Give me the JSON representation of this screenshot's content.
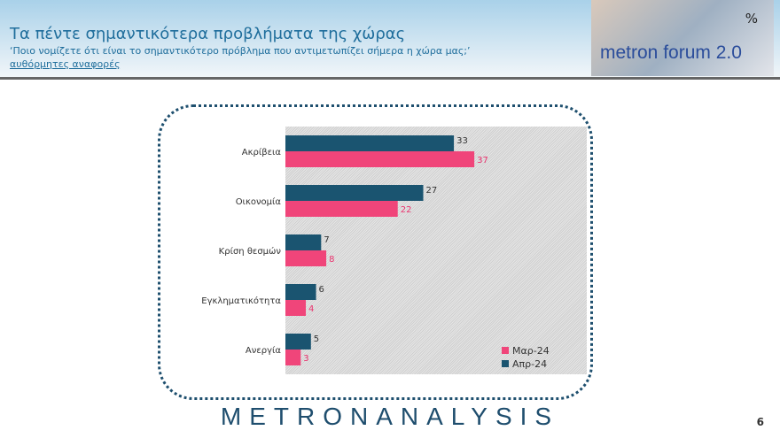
{
  "header": {
    "title": "Τα πέντε σημαντικότερα προβλήματα της χώρας",
    "subtitle": "‘Ποιο νομίζετε ότι είναι το σημαντικότερο πρόβλημα που αντιμετωπίζει σήμερα η χώρα μας;’",
    "note": "αυθόρμητες αναφορές",
    "logo_text": "metron forum 2.0",
    "logo_symbol": "%"
  },
  "footer": {
    "brand": "METRONANALYSIS",
    "page": "6"
  },
  "chart_data": {
    "type": "bar",
    "orientation": "horizontal",
    "categories": [
      "Ακρίβεια",
      "Οικονομία",
      "Κρίση θεσμών",
      "Εγκληματικότητα",
      "Ανεργία"
    ],
    "series": [
      {
        "name": "Απρ-24",
        "color": "#1a5470",
        "values": [
          33,
          27,
          7,
          6,
          5
        ]
      },
      {
        "name": "Μαρ-24",
        "color": "#f0457a",
        "values": [
          37,
          22,
          8,
          4,
          3
        ]
      }
    ],
    "legend": [
      "Μαρ-24",
      "Απρ-24"
    ],
    "legend_position": "bottom-right",
    "xlim": [
      0,
      55
    ],
    "data_label_colors": {
      "Απρ-24": "#333333",
      "Μαρ-24": "#e8336e"
    }
  }
}
